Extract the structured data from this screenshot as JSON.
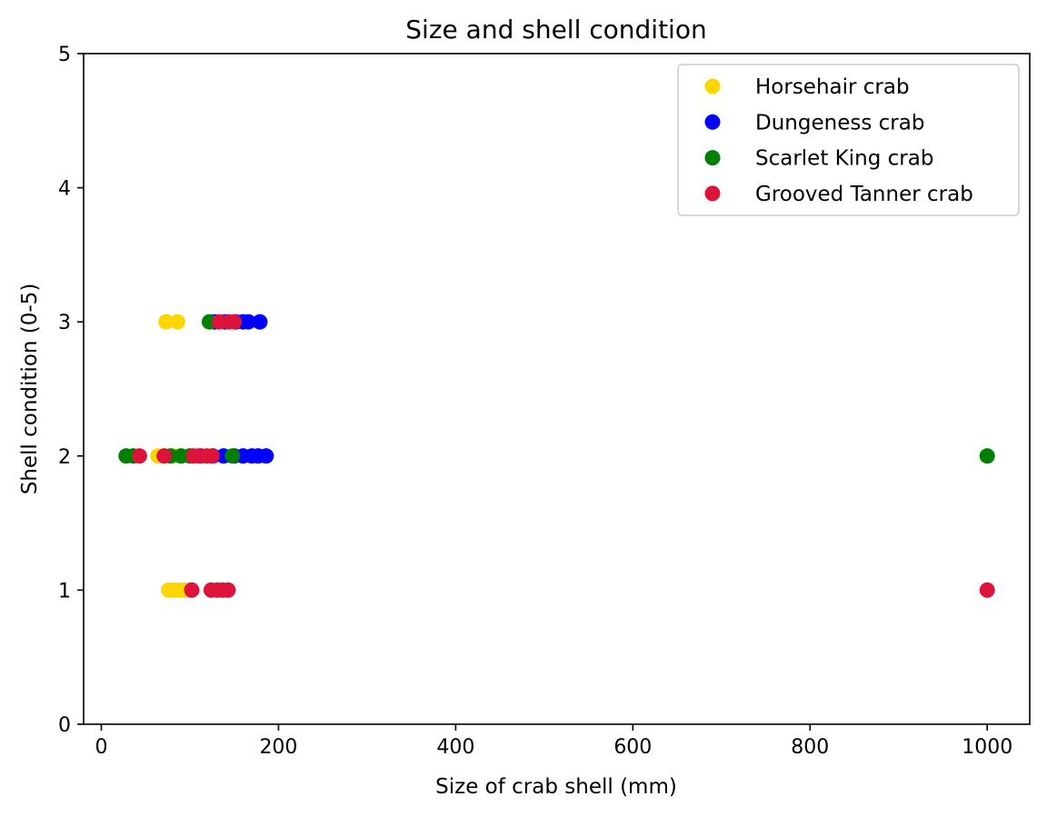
{
  "chart_data": {
    "type": "scatter",
    "title": "Size and shell condition",
    "xlabel": "Size of crab shell (mm)",
    "ylabel": "Shell condition (0-5)",
    "xlim": [
      -20,
      1048
    ],
    "ylim": [
      0,
      5
    ],
    "xticks": [
      0,
      200,
      400,
      600,
      800,
      1000
    ],
    "yticks": [
      0,
      1,
      2,
      3,
      4,
      5
    ],
    "grid": false,
    "legend_position": "upper-right",
    "series": [
      {
        "name": "Horsehair crab",
        "color": "#ffd700",
        "points": [
          [
            73,
            3
          ],
          [
            86,
            3
          ],
          [
            64,
            2
          ],
          [
            70,
            2
          ],
          [
            82,
            2
          ],
          [
            76,
            1
          ],
          [
            82,
            1
          ],
          [
            88,
            1
          ],
          [
            94,
            1
          ],
          [
            99,
            1
          ]
        ]
      },
      {
        "name": "Dungeness crab",
        "color": "#0000ff",
        "points": [
          [
            128,
            3
          ],
          [
            140,
            3
          ],
          [
            152,
            3
          ],
          [
            160,
            3
          ],
          [
            166,
            3
          ],
          [
            179,
            3
          ],
          [
            112,
            2
          ],
          [
            126,
            2
          ],
          [
            138,
            2
          ],
          [
            150,
            2
          ],
          [
            160,
            2
          ],
          [
            170,
            2
          ],
          [
            177,
            2
          ],
          [
            186,
            2
          ]
        ]
      },
      {
        "name": "Scarlet King crab",
        "color": "#008000",
        "points": [
          [
            122,
            3
          ],
          [
            28,
            2
          ],
          [
            36,
            2
          ],
          [
            78,
            2
          ],
          [
            90,
            2
          ],
          [
            100,
            2
          ],
          [
            148,
            2
          ],
          [
            1000,
            2
          ]
        ]
      },
      {
        "name": "Grooved Tanner crab",
        "color": "#dc143c",
        "points": [
          [
            133,
            3
          ],
          [
            144,
            3
          ],
          [
            150,
            3
          ],
          [
            43,
            2
          ],
          [
            71,
            2
          ],
          [
            104,
            2
          ],
          [
            110,
            2
          ],
          [
            119,
            2
          ],
          [
            125,
            2
          ],
          [
            102,
            1
          ],
          [
            124,
            1
          ],
          [
            131,
            1
          ],
          [
            137,
            1
          ],
          [
            143,
            1
          ],
          [
            1000,
            1
          ]
        ]
      }
    ]
  }
}
